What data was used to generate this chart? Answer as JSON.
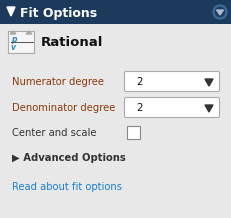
{
  "fig_width": 2.31,
  "fig_height": 2.18,
  "dpi": 100,
  "bg_color": "#e8e8e8",
  "header_bg": "#1b3a5c",
  "header_text": "Fit Options",
  "header_text_color": "#ffffff",
  "header_font_size": 9.0,
  "rational_label": "Rational",
  "rational_font_size": 9.5,
  "fields": [
    {
      "label": "Numerator degree",
      "value": "2"
    },
    {
      "label": "Denominator degree",
      "value": "2"
    }
  ],
  "field_label_color": "#8b3a0a",
  "field_font_size": 7.2,
  "dropdown_bg": "#ffffff",
  "dropdown_border": "#aaaaaa",
  "checkbox_label": "Center and scale",
  "checkbox_label_color": "#333333",
  "advanced_label": "▶ Advanced Options",
  "advanced_color": "#333333",
  "link_text": "Read about fit options",
  "link_color": "#1a7fcf",
  "link_font_size": 7.2,
  "arrow_color": "#333333",
  "gear_color": "#3a6a9a",
  "gear_inner": "#1b3a5c"
}
